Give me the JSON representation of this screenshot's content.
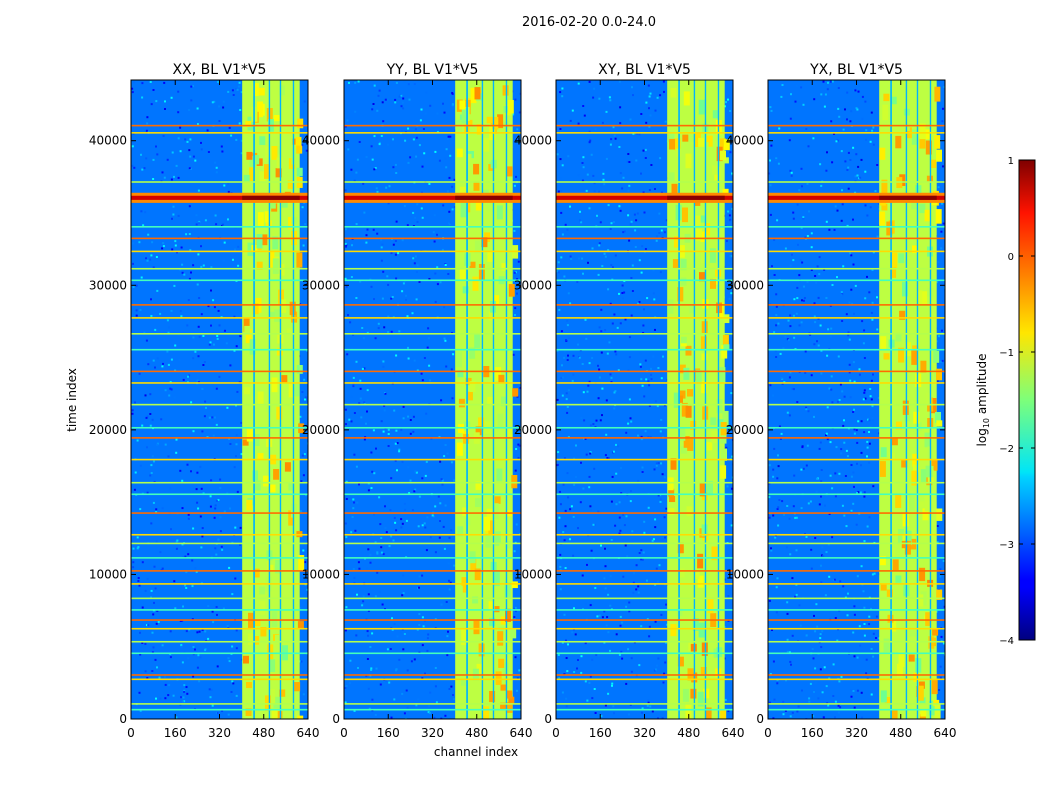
{
  "figure": {
    "suptitle": "2016-02-20 0.0-24.0",
    "xlabel": "channel index",
    "ylabel": "time index"
  },
  "colorbar": {
    "label_prefix": "log",
    "label_sub": "10",
    "label_suffix": " amplitude",
    "range": [
      -4,
      1
    ],
    "ticks": [
      1,
      0,
      -1,
      -2,
      -3,
      -4
    ],
    "tick_labels": [
      "1",
      "0",
      "−1",
      "−2",
      "−3",
      "−4"
    ],
    "colormap": "jet"
  },
  "chart_data": {
    "type": "heatmap",
    "panels": [
      {
        "title": "XX, BL V1*V5"
      },
      {
        "title": "YY, BL V1*V5"
      },
      {
        "title": "XY, BL V1*V5"
      },
      {
        "title": "YX, BL V1*V5"
      }
    ],
    "xlim": [
      0,
      640
    ],
    "ylim": [
      0,
      44200
    ],
    "xticks": [
      0,
      160,
      320,
      480,
      640
    ],
    "yticks": [
      0,
      10000,
      20000,
      30000,
      40000
    ],
    "xtick_labels": [
      "0",
      "160",
      "320",
      "480",
      "640"
    ],
    "ytick_labels": [
      "0",
      "10000",
      "20000",
      "30000",
      "40000"
    ],
    "background_level": -2.8,
    "band_channel_range": [
      402,
      610
    ],
    "band_level": -1.2,
    "band_gap_channels": [
      [
        442,
        448
      ],
      [
        498,
        503
      ],
      [
        538,
        543
      ],
      [
        585,
        590
      ]
    ],
    "bright_time_range": [
      35700,
      36400
    ],
    "bright_level": 0.6,
    "rfi_time_rows": [
      700,
      1100,
      2800,
      3100,
      4600,
      5400,
      6300,
      6900,
      7600,
      8400,
      9400,
      10300,
      11200,
      12200,
      12800,
      14300,
      15600,
      16400,
      18000,
      19500,
      20200,
      21800,
      23300,
      24100,
      25600,
      26700,
      27800,
      28700,
      30400,
      31200,
      32400,
      33300,
      34100,
      37200,
      40600,
      41100
    ]
  }
}
